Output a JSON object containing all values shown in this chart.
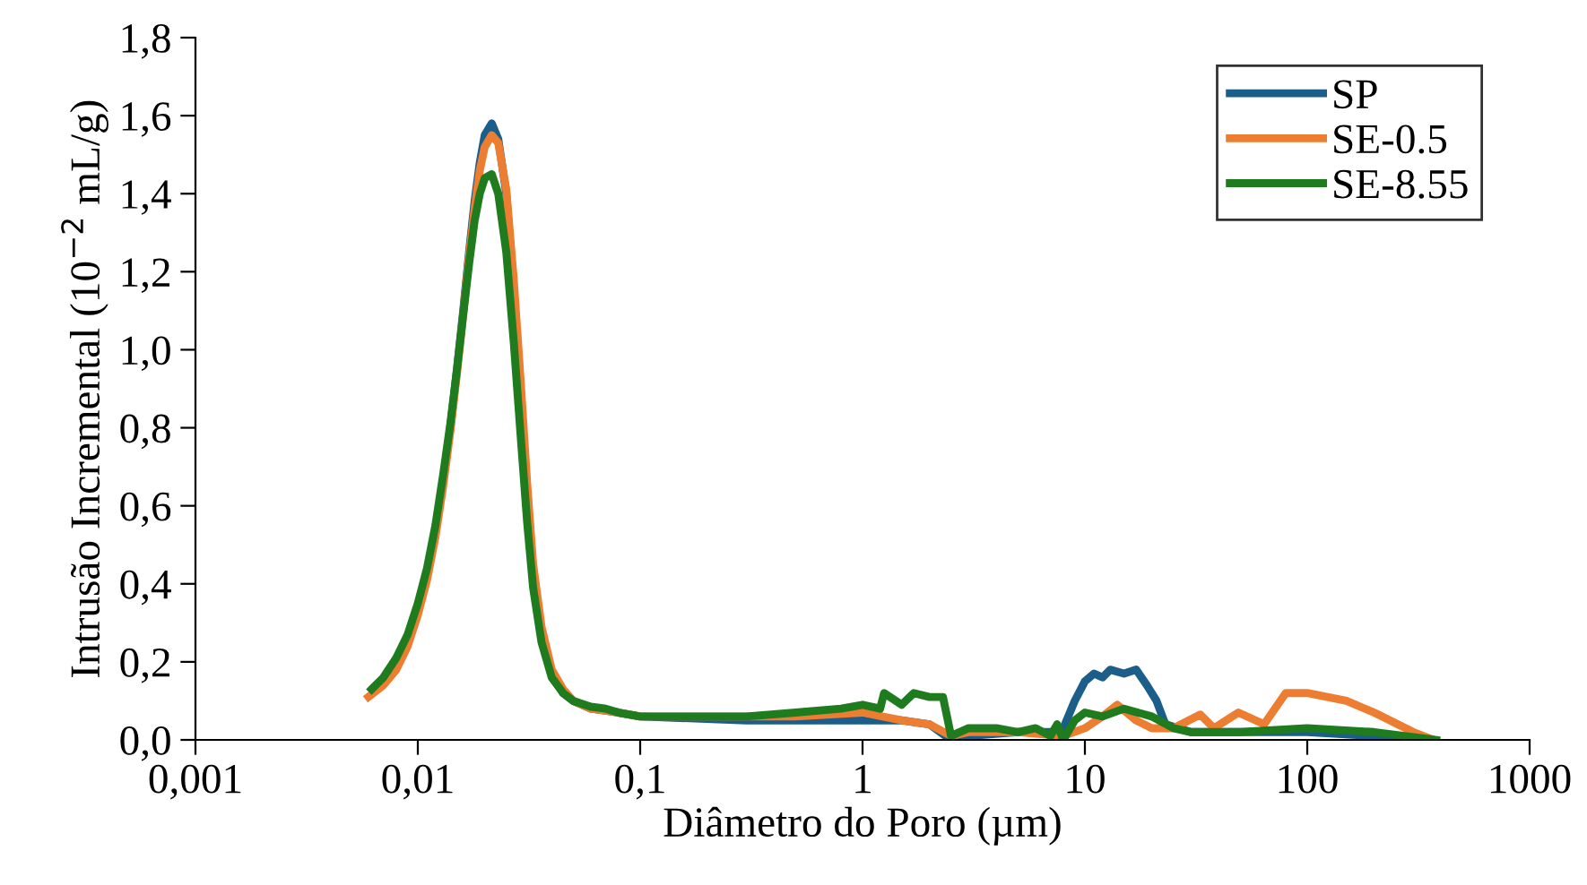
{
  "chart_data": {
    "type": "line",
    "xlabel": "Diâmetro do Poro (µm)",
    "ylabel": "Intrusão Incremental (10$^{−2}$ mL/g)",
    "log": "x",
    "xlim": [
      0.001,
      1000
    ],
    "ylim": [
      0,
      1.8
    ],
    "xticks": [
      {
        "value": 0.001,
        "label": "0,001"
      },
      {
        "value": 0.01,
        "label": "0,01"
      },
      {
        "value": 0.1,
        "label": "0,1"
      },
      1,
      10,
      100,
      1000
    ],
    "yticks": [
      {
        "value": 0,
        "label": "0,0"
      },
      {
        "value": 0.2,
        "label": "0,2"
      },
      {
        "value": 0.4,
        "label": "0,4"
      },
      {
        "value": 0.6,
        "label": "0,6"
      },
      {
        "value": 0.8,
        "label": "0,8"
      },
      {
        "value": 1.0,
        "label": "1,0"
      },
      {
        "value": 1.2,
        "label": "1,2"
      },
      {
        "value": 1.4,
        "label": "1,4"
      },
      {
        "value": 1.6,
        "label": "1,6"
      },
      {
        "value": 1.8,
        "label": "1,8"
      }
    ],
    "grid": false,
    "legend": "top right",
    "marker": "none",
    "line_style": "solid",
    "series": [
      {
        "name": "SP",
        "color": "#1b5e8a",
        "x": [
          0.014,
          0.015,
          0.016,
          0.017,
          0.018,
          0.019,
          0.02,
          0.0215,
          0.023,
          0.025,
          0.027,
          0.029,
          0.031,
          0.033,
          0.036,
          0.04,
          0.045,
          0.05,
          0.06,
          0.07,
          0.08,
          0.1,
          0.3,
          0.6,
          1,
          1.5,
          2,
          2.5,
          3,
          5,
          7,
          8,
          9,
          10,
          11,
          12,
          13,
          15,
          17,
          19,
          21,
          23,
          30,
          100,
          200,
          350
        ],
        "values": [
          0.8,
          0.95,
          1.1,
          1.25,
          1.38,
          1.48,
          1.55,
          1.58,
          1.54,
          1.4,
          1.15,
          0.88,
          0.62,
          0.42,
          0.27,
          0.17,
          0.12,
          0.1,
          0.08,
          0.075,
          0.07,
          0.06,
          0.05,
          0.05,
          0.05,
          0.05,
          0.04,
          0.0,
          0.01,
          0.02,
          0.02,
          0.03,
          0.1,
          0.15,
          0.17,
          0.16,
          0.18,
          0.17,
          0.18,
          0.14,
          0.1,
          0.04,
          0.02,
          0.02,
          0.01,
          0.0
        ]
      },
      {
        "name": "SE-0.5",
        "color": "#ed7d31",
        "x": [
          0.006,
          0.007,
          0.008,
          0.009,
          0.01,
          0.011,
          0.012,
          0.013,
          0.014,
          0.015,
          0.016,
          0.017,
          0.018,
          0.019,
          0.02,
          0.0215,
          0.023,
          0.025,
          0.027,
          0.029,
          0.031,
          0.033,
          0.036,
          0.04,
          0.045,
          0.05,
          0.06,
          0.07,
          0.08,
          0.1,
          0.5,
          1,
          1.5,
          2,
          2.5,
          3,
          5,
          8,
          10,
          12,
          14,
          17,
          20,
          25,
          33,
          38,
          49,
          64,
          80,
          100,
          150,
          200,
          300,
          370
        ],
        "values": [
          0.11,
          0.14,
          0.18,
          0.24,
          0.32,
          0.41,
          0.52,
          0.65,
          0.79,
          0.94,
          1.09,
          1.24,
          1.36,
          1.46,
          1.52,
          1.55,
          1.53,
          1.41,
          1.18,
          0.92,
          0.66,
          0.45,
          0.29,
          0.18,
          0.13,
          0.1,
          0.08,
          0.075,
          0.07,
          0.06,
          0.06,
          0.07,
          0.05,
          0.04,
          0.01,
          0.02,
          0.02,
          0.01,
          0.03,
          0.06,
          0.09,
          0.05,
          0.03,
          0.03,
          0.065,
          0.03,
          0.07,
          0.04,
          0.12,
          0.12,
          0.1,
          0.07,
          0.02,
          0.0
        ]
      },
      {
        "name": "SE-8.55",
        "color": "#1e7b1e",
        "x": [
          0.0062,
          0.007,
          0.008,
          0.009,
          0.01,
          0.011,
          0.012,
          0.013,
          0.014,
          0.015,
          0.016,
          0.017,
          0.018,
          0.019,
          0.02,
          0.0215,
          0.023,
          0.025,
          0.027,
          0.029,
          0.031,
          0.033,
          0.036,
          0.04,
          0.045,
          0.05,
          0.06,
          0.07,
          0.08,
          0.1,
          0.3,
          0.5,
          0.8,
          1,
          1.2,
          1.25,
          1.5,
          1.7,
          2,
          2.3,
          2.5,
          3,
          4,
          5,
          6,
          7,
          7.5,
          8,
          9,
          10,
          12,
          15,
          20,
          25,
          30,
          50,
          100,
          200,
          380
        ],
        "values": [
          0.13,
          0.16,
          0.21,
          0.27,
          0.35,
          0.44,
          0.55,
          0.68,
          0.81,
          0.95,
          1.09,
          1.22,
          1.33,
          1.4,
          1.44,
          1.45,
          1.4,
          1.25,
          1.02,
          0.78,
          0.56,
          0.39,
          0.25,
          0.16,
          0.12,
          0.1,
          0.085,
          0.08,
          0.07,
          0.06,
          0.06,
          0.07,
          0.08,
          0.09,
          0.08,
          0.12,
          0.09,
          0.12,
          0.11,
          0.11,
          0.01,
          0.03,
          0.03,
          0.02,
          0.03,
          0.01,
          0.04,
          0.0,
          0.05,
          0.07,
          0.06,
          0.08,
          0.06,
          0.03,
          0.02,
          0.02,
          0.03,
          0.02,
          0.0
        ]
      }
    ]
  }
}
